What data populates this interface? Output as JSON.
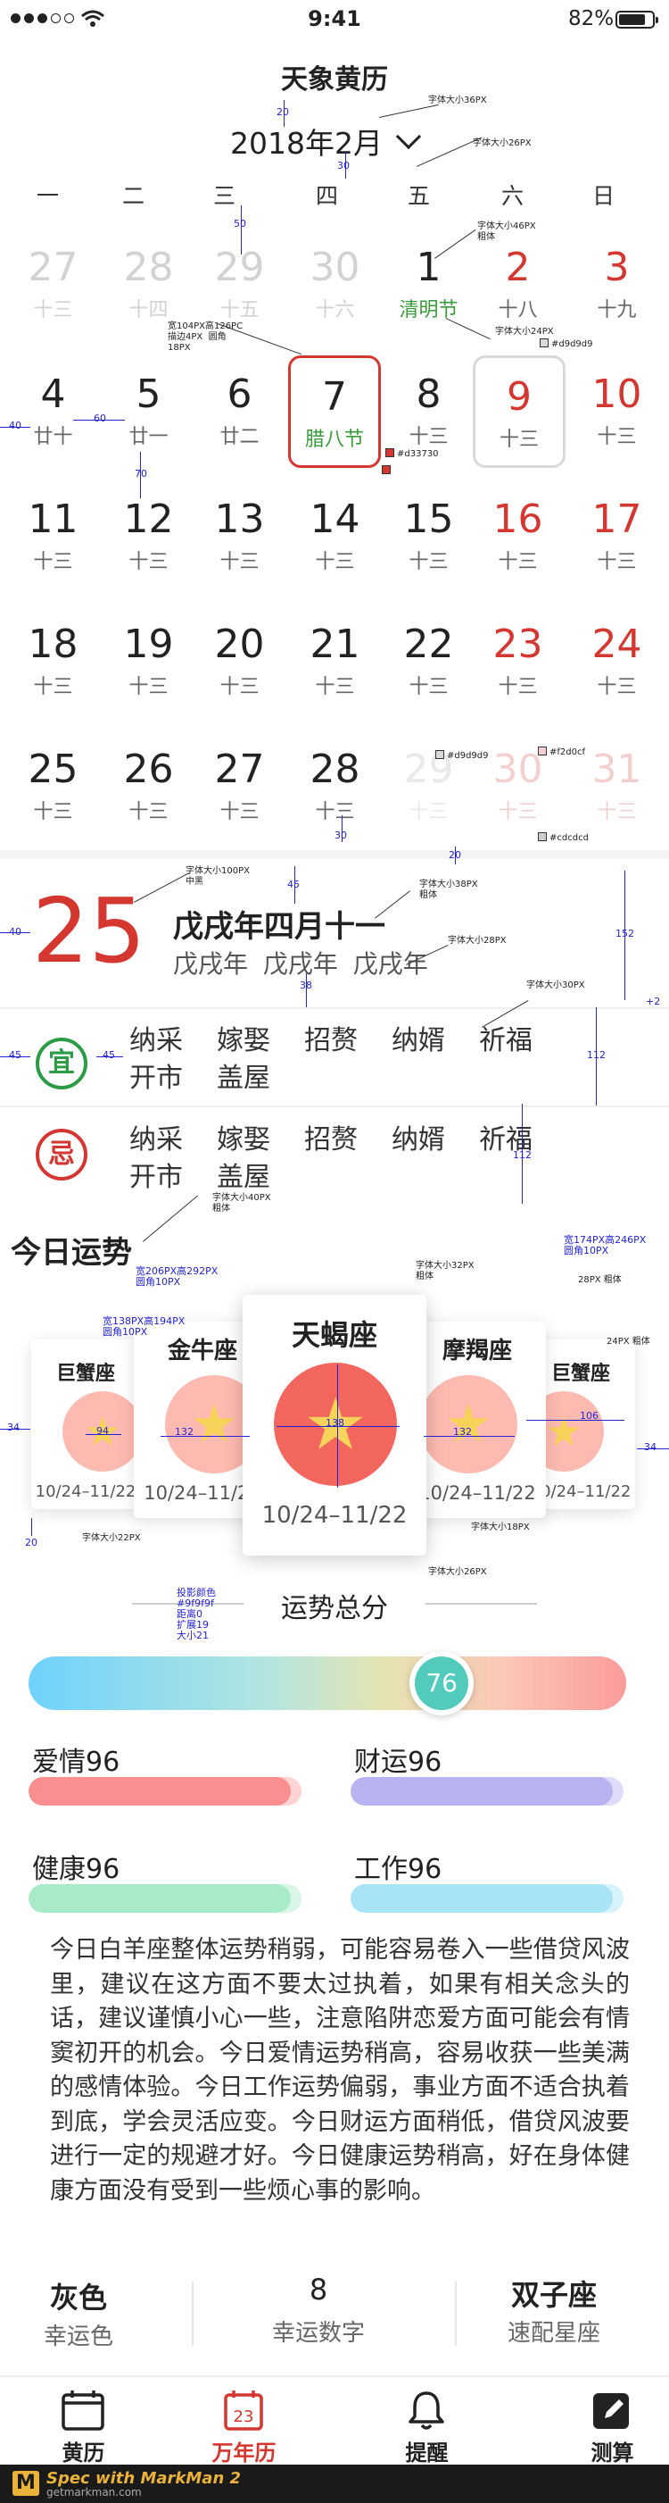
{
  "status_bar": {
    "time": "9:41",
    "battery": "82%"
  },
  "header": {
    "title": "天象黄历",
    "month": "2018年2月"
  },
  "weekdays": [
    "一",
    "二",
    "三",
    "四",
    "五",
    "六",
    "日"
  ],
  "calendar": [
    [
      {
        "n": "27",
        "l": "十三",
        "s": "dim"
      },
      {
        "n": "28",
        "l": "十四",
        "s": "dim"
      },
      {
        "n": "29",
        "l": "十五",
        "s": "dim"
      },
      {
        "n": "30",
        "l": "十六",
        "s": "dim"
      },
      {
        "n": "1",
        "l": "清明节",
        "s": "green"
      },
      {
        "n": "2",
        "l": "十八",
        "s": "red"
      },
      {
        "n": "3",
        "l": "十九",
        "s": "red"
      }
    ],
    [
      {
        "n": "4",
        "l": "廿十",
        "s": ""
      },
      {
        "n": "5",
        "l": "廿一",
        "s": ""
      },
      {
        "n": "6",
        "l": "廿二",
        "s": ""
      },
      {
        "n": "7",
        "l": "腊八节",
        "s": "sel green"
      },
      {
        "n": "8",
        "l": "十三",
        "s": ""
      },
      {
        "n": "9",
        "l": "十三",
        "s": "today red"
      },
      {
        "n": "10",
        "l": "十三",
        "s": "red"
      }
    ],
    [
      {
        "n": "11",
        "l": "十三",
        "s": ""
      },
      {
        "n": "12",
        "l": "十三",
        "s": ""
      },
      {
        "n": "13",
        "l": "十三",
        "s": ""
      },
      {
        "n": "14",
        "l": "十三",
        "s": ""
      },
      {
        "n": "15",
        "l": "十三",
        "s": ""
      },
      {
        "n": "16",
        "l": "十三",
        "s": "red"
      },
      {
        "n": "17",
        "l": "十三",
        "s": "red"
      }
    ],
    [
      {
        "n": "18",
        "l": "十三",
        "s": ""
      },
      {
        "n": "19",
        "l": "十三",
        "s": ""
      },
      {
        "n": "20",
        "l": "十三",
        "s": ""
      },
      {
        "n": "21",
        "l": "十三",
        "s": ""
      },
      {
        "n": "22",
        "l": "十三",
        "s": ""
      },
      {
        "n": "23",
        "l": "十三",
        "s": "red"
      },
      {
        "n": "24",
        "l": "十三",
        "s": "red"
      }
    ],
    [
      {
        "n": "25",
        "l": "十三",
        "s": ""
      },
      {
        "n": "26",
        "l": "十三",
        "s": ""
      },
      {
        "n": "27",
        "l": "十三",
        "s": ""
      },
      {
        "n": "28",
        "l": "十三",
        "s": ""
      },
      {
        "n": "29",
        "l": "十三",
        "s": "fade2"
      },
      {
        "n": "30",
        "l": "十三",
        "s": "fade"
      },
      {
        "n": "31",
        "l": "十三",
        "s": "fade"
      }
    ]
  ],
  "day_detail": {
    "day": "25",
    "lunar": "戊戌年四月十一",
    "ganzhi": "戊戌年 戊戌年 戊戌年",
    "yi_icon": "宜",
    "ji_icon": "忌",
    "yi": [
      "纳采",
      "嫁娶",
      "招赘",
      "纳婿",
      "祈福",
      "开市",
      "盖屋"
    ],
    "ji": [
      "纳采",
      "嫁娶",
      "招赘",
      "纳婿",
      "祈福",
      "开市",
      "盖屋"
    ]
  },
  "fortune": {
    "title": "今日运势",
    "cards": [
      {
        "name": "巨蟹座",
        "date": "10/24–11/22"
      },
      {
        "name": "金牛座",
        "date": "10/24–11/22"
      },
      {
        "name": "天蝎座",
        "date": "10/24–11/22"
      },
      {
        "name": "摩羯座",
        "date": "10/24–11/22"
      },
      {
        "name": "巨蟹座",
        "date": "10/24–11/22"
      }
    ],
    "score_title": "运势总分",
    "total": "76",
    "total_value": 76,
    "items": [
      {
        "label": "爱情96",
        "value": 96,
        "color": "#fb8e8e",
        "bg": "#fdd3d3"
      },
      {
        "label": "财运96",
        "value": 96,
        "color": "#b8b4f2",
        "bg": "#dedcfa"
      },
      {
        "label": "健康96",
        "value": 96,
        "color": "#a9ebc9",
        "bg": "#d9f6e8"
      },
      {
        "label": "工作96",
        "value": 96,
        "color": "#a8e4f6",
        "bg": "#d6f2fb"
      }
    ],
    "description": "今日白羊座整体运势稍弱，可能容易卷入一些借贷风波里，建议在这方面不要太过执着，如果有相关念头的话，建议谨慎小心一些，注意陷阱恋爱方面可能会有情窦初开的机会。今日爱情运势稍高，容易收获一些美满的感情体验。今日工作运势偏弱，事业方面不适合执着到底，学会灵活应变。今日财运方面稍低，借贷风波要进行一定的规避才好。今日健康运势稍高，好在身体健康方面没有受到一些烦心事的影响。",
    "lucky": [
      {
        "value": "灰色",
        "label": "幸运色"
      },
      {
        "value": "8",
        "label": "幸运数字"
      },
      {
        "value": "双子座",
        "label": "速配星座"
      }
    ]
  },
  "tabs": [
    {
      "label": "黄历",
      "icon": "calendar-icon"
    },
    {
      "label": "万年历",
      "icon": "calendar-23-icon",
      "badge": "23"
    },
    {
      "label": "提醒",
      "icon": "bell-icon"
    },
    {
      "label": "测算",
      "icon": "edit-icon"
    }
  ],
  "markman": {
    "brand": "Spec with MarkMan 2",
    "url": "getmarkman.com"
  },
  "annotations": {
    "a1": "字体大小36PX",
    "a2": "字体大小26PX",
    "a3": "字体大小46PX\n粗体",
    "a4": "字体大小24PX",
    "a5": "宽104PX高126PC\n描边4PX  圆角\n18PX",
    "a6": "#d33730",
    "a7": "#d9d9d9",
    "a8": "#d9d9d9",
    "a9": "#f2d0cf",
    "a10": "#cdcdcd",
    "a11": "字体大小100PX\n中黑",
    "a12": "字体大小38PX\n粗体",
    "a13": "字体大小28PX",
    "a14": "字体大小30PX",
    "a15": "字体大小40PX\n粗体",
    "a16": "宽174PX高246PX\n圆角10PX",
    "a17": "28PX 粗体",
    "a18": "24PX 粗体",
    "a19": "宽206PX高292PX\n圆角10PX",
    "a20": "字体大小32PX\n粗体",
    "a21": "宽138PX高194PX\n圆角10PX",
    "a22": "字体大小22PX",
    "a23": "字体大小26PX",
    "a24": "字体大小18PX",
    "a25": "投影颜色\n#9f9f9f\n距离0\n扩展19\n大小21",
    "m20": "20",
    "m30": "30",
    "m50": "50",
    "m40": "40",
    "m60": "60",
    "m70": "70",
    "m45": "45",
    "m38": "38",
    "m152": "152",
    "m112": "112",
    "m2": "+2",
    "m34": "34",
    "m106": "106",
    "m94": "94",
    "m132": "132",
    "m138": "138",
    "m30b": "30",
    "m20b": "20",
    "m45b": "45",
    "m40b": "40"
  }
}
